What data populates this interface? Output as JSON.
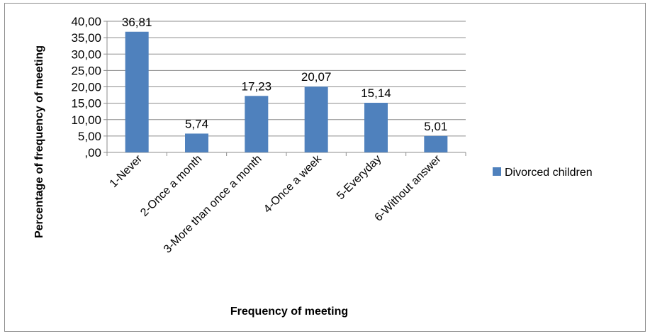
{
  "chart_data": {
    "type": "bar",
    "title": "",
    "xlabel": "Frequency of meeting",
    "ylabel": "Percentage of frequency of meeting",
    "ylim": [
      0,
      40
    ],
    "ytick_step": 5,
    "ytick_labels": [
      ",00",
      "5,00",
      "10,00",
      "15,00",
      "20,00",
      "25,00",
      "30,00",
      "35,00",
      "40,00"
    ],
    "grid": true,
    "legend_position": "right",
    "categories": [
      "1-Never",
      "2-Once a month",
      "3-More than once a month",
      "4-Once a week",
      "5-Everyday",
      "6-Without answer"
    ],
    "series": [
      {
        "name": "Divorced children",
        "color": "#4f81bd",
        "values": [
          36.81,
          5.74,
          17.23,
          20.07,
          15.14,
          5.01
        ],
        "value_labels": [
          "36,81",
          "5,74",
          "17,23",
          "20,07",
          "15,14",
          "5,01"
        ]
      }
    ]
  }
}
